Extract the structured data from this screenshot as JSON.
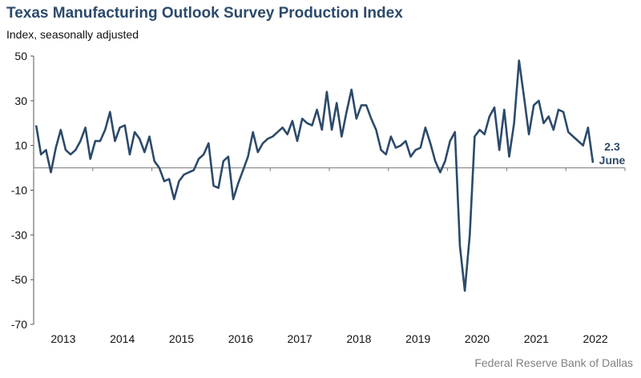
{
  "chart_data": {
    "type": "line",
    "title": "Texas Manufacturing Outlook Survey Production Index",
    "subtitle": "Index, seasonally adjusted",
    "source": "Federal Reserve Bank of Dallas",
    "xlabel": "",
    "ylabel": "Index, seasonally adjusted",
    "ylim": [
      -70,
      50
    ],
    "y_ticks": [
      50,
      30,
      10,
      -10,
      -30,
      -50,
      -70
    ],
    "x_ticks": [
      "2013",
      "2014",
      "2015",
      "2016",
      "2017",
      "2018",
      "2019",
      "2020",
      "2021",
      "2022"
    ],
    "x_range": {
      "start": "2013-01",
      "end": "2022-06",
      "frequency": "monthly"
    },
    "grid": false,
    "zero_line": true,
    "line_color": "#2c4a6b",
    "annotation": {
      "value": "2.3",
      "label": "June"
    },
    "series": [
      {
        "name": "Production Index",
        "values": [
          19,
          6,
          8,
          -2,
          9,
          17,
          8,
          6,
          8,
          12,
          18,
          4,
          12,
          12,
          17,
          25,
          12,
          18,
          19,
          6,
          16,
          13,
          7,
          14,
          3,
          0,
          -6,
          -5,
          -14,
          -6,
          -3,
          -2,
          -1,
          4,
          6,
          11,
          -8,
          -9,
          3,
          5,
          -14,
          -7,
          -1,
          5,
          16,
          7,
          11,
          13,
          14,
          16,
          18,
          15,
          21,
          12,
          22,
          20,
          19,
          26,
          17,
          34,
          17,
          29,
          14,
          25,
          35,
          22,
          28,
          28,
          22,
          17,
          8,
          6,
          14,
          9,
          10,
          12,
          5,
          8,
          9,
          18,
          11,
          3,
          -2,
          3,
          12,
          16,
          -35,
          -55,
          -30,
          14,
          17,
          15,
          23,
          27,
          8,
          26,
          5,
          20,
          48,
          32,
          15,
          28,
          30,
          20,
          23,
          17,
          26,
          25,
          16,
          14,
          12,
          10,
          18,
          2.3
        ]
      }
    ]
  }
}
